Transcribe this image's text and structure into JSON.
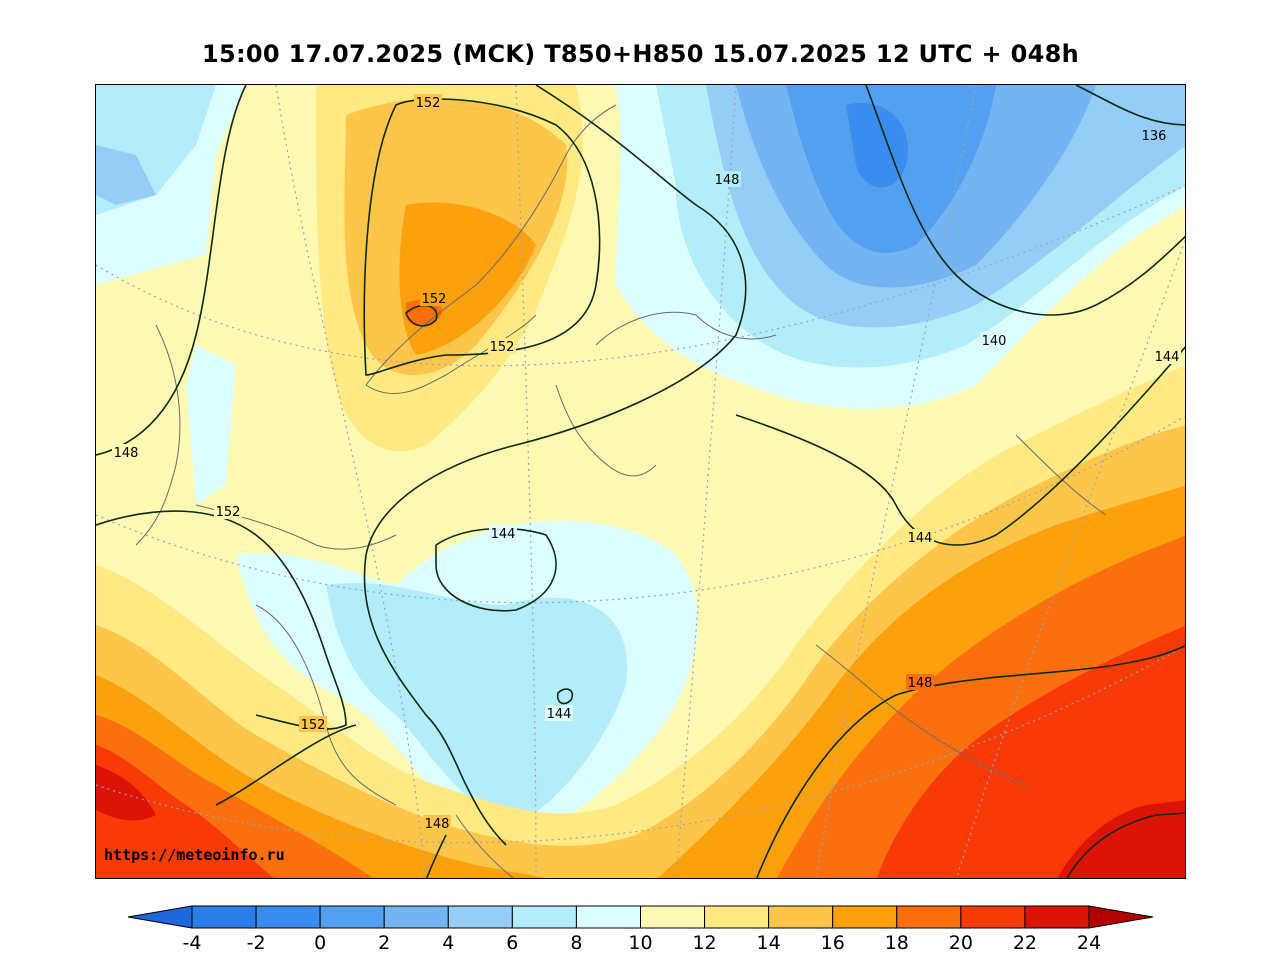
{
  "title": "15:00 17.07.2025 (MCK) T850+H850 15.07.2025 12 UTC + 048h",
  "watermark": "https://meteoinfo.ru",
  "colorbar": {
    "ticks": [
      "-4",
      "-2",
      "0",
      "2",
      "4",
      "6",
      "8",
      "10",
      "12",
      "14",
      "16",
      "18",
      "20",
      "22",
      "24"
    ],
    "bins": [
      {
        "from": -4,
        "to": -2,
        "color": "#2b7de9"
      },
      {
        "from": -2,
        "to": 0,
        "color": "#3a8cee"
      },
      {
        "from": 0,
        "to": 2,
        "color": "#539ff0"
      },
      {
        "from": 2,
        "to": 4,
        "color": "#74b4f3"
      },
      {
        "from": 4,
        "to": 6,
        "color": "#96cdf6"
      },
      {
        "from": 6,
        "to": 8,
        "color": "#b2edf9"
      },
      {
        "from": 8,
        "to": 10,
        "color": "#dcfefe"
      },
      {
        "from": 10,
        "to": 12,
        "color": "#fdf8b2"
      },
      {
        "from": 12,
        "to": 14,
        "color": "#fee982"
      },
      {
        "from": 14,
        "to": 16,
        "color": "#fdc64a"
      },
      {
        "from": 16,
        "to": 18,
        "color": "#fca10d"
      },
      {
        "from": 18,
        "to": 20,
        "color": "#fb6f0e"
      },
      {
        "from": 20,
        "to": 22,
        "color": "#f83a06"
      },
      {
        "from": 22,
        "to": 24,
        "color": "#dc1408"
      }
    ],
    "under_color": "#1f67db",
    "over_color": "#b40000"
  },
  "contour_labels": [
    "152",
    "152",
    "152",
    "148",
    "136",
    "140",
    "144",
    "148",
    "152",
    "144",
    "144",
    "144",
    "152",
    "148",
    "148"
  ]
}
